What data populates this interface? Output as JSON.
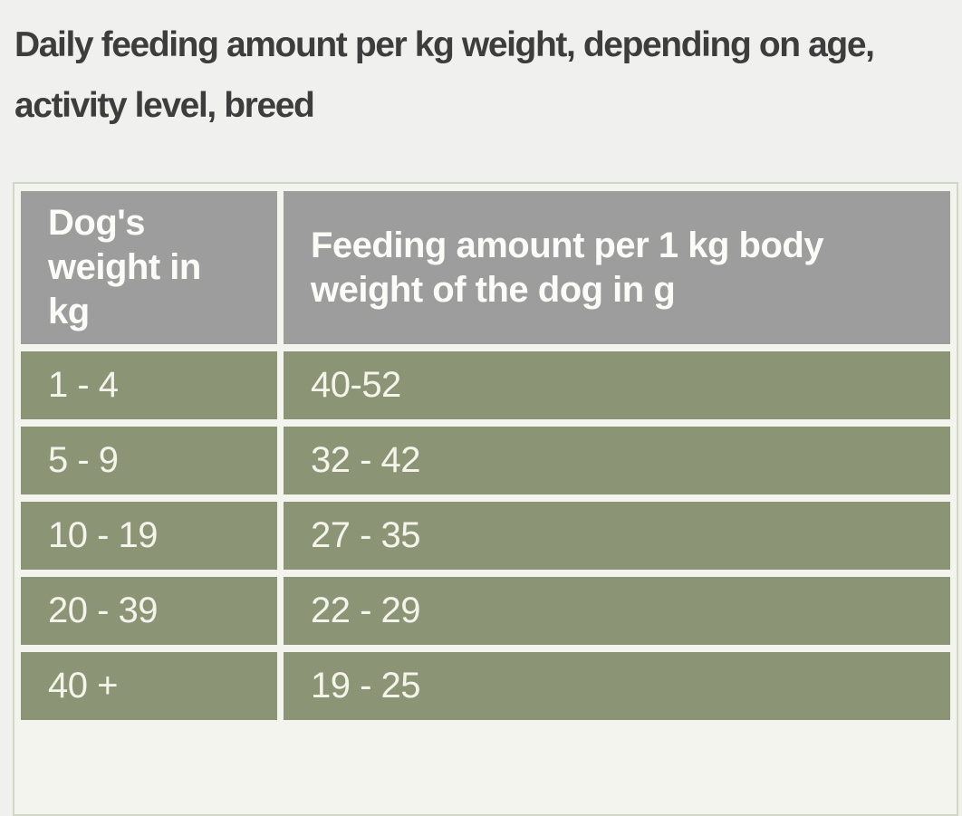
{
  "page": {
    "title_lines": [
      "Daily feeding amount per kg weight, depending on age,",
      "activity level, breed"
    ]
  },
  "table": {
    "columns": [
      {
        "header": "Dog's weight in kg"
      },
      {
        "header": "Feeding amount per 1 kg body weight of the dog in g"
      }
    ],
    "rows": [
      {
        "weight": "1 - 4",
        "amount": "40-52"
      },
      {
        "weight": "5 - 9",
        "amount": "32 - 42"
      },
      {
        "weight": "10 - 19",
        "amount": "27 - 35"
      },
      {
        "weight": "20 - 39",
        "amount": "22 - 29"
      },
      {
        "weight": "40 +",
        "amount": "19 - 25"
      }
    ]
  },
  "colors": {
    "page_background": "#f0f0ee",
    "title_text": "#3d3d3d",
    "header_cell_background": "#9d9d9d",
    "row_cell_background": "#8b9576",
    "cell_text": "#f4f4ea",
    "table_border": "#d2d7c5",
    "cell_gap": "#f3f4ed"
  }
}
